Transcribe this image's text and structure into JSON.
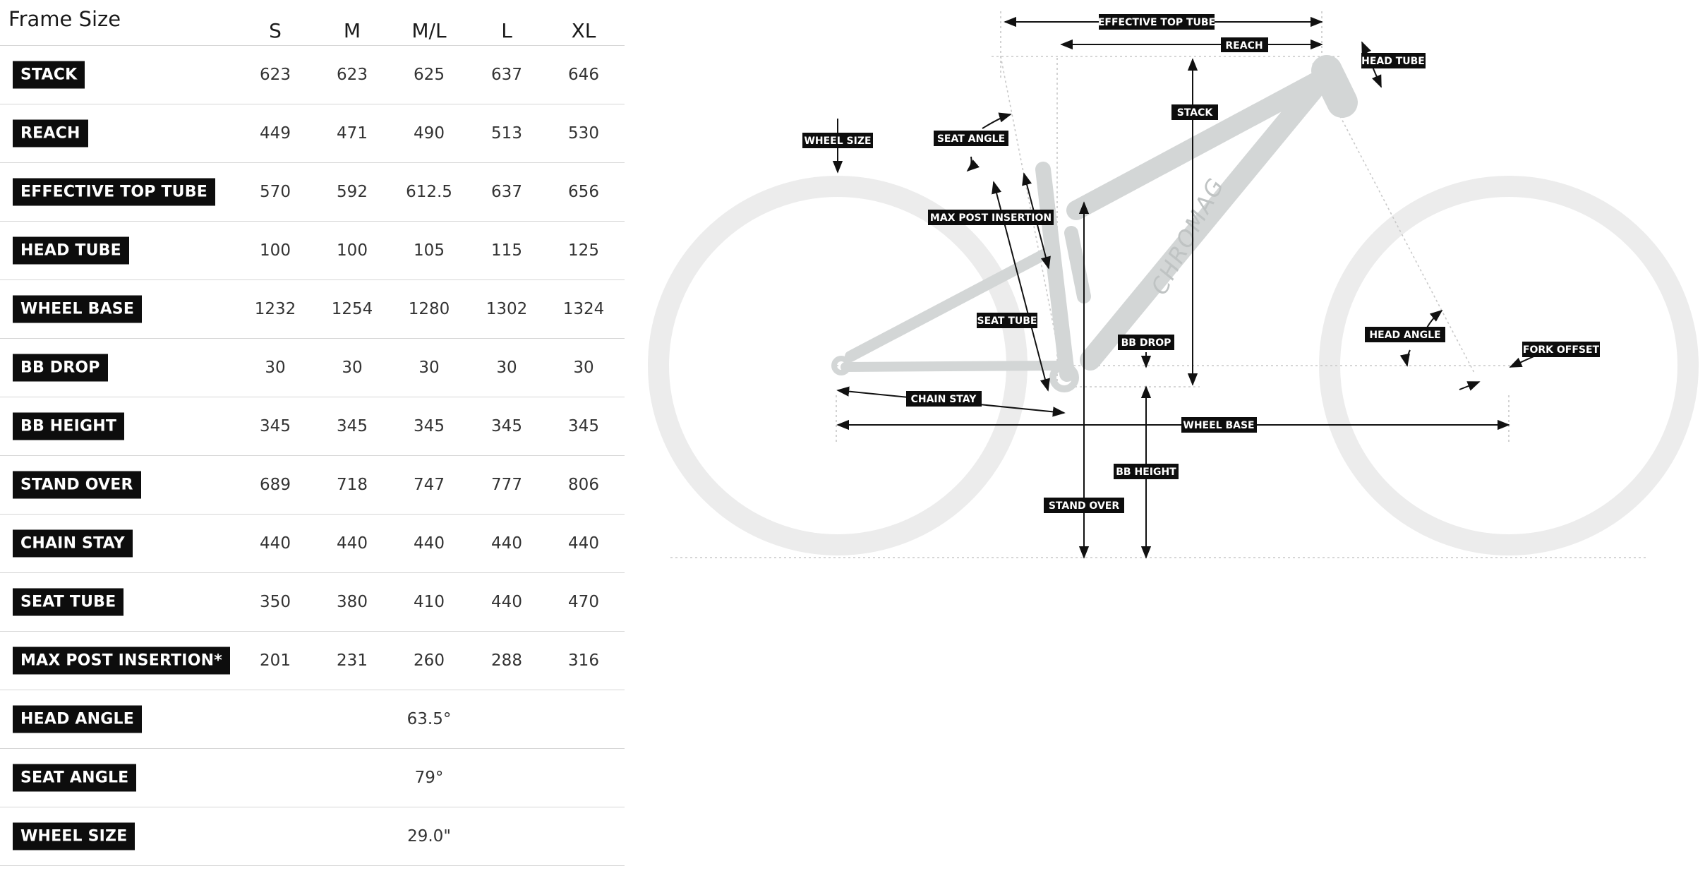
{
  "table": {
    "header": {
      "title": "Frame Size",
      "sizes": [
        "S",
        "M",
        "M/L",
        "L",
        "XL"
      ]
    },
    "rows": [
      {
        "label": "STACK",
        "values": [
          "623",
          "623",
          "625",
          "637",
          "646"
        ]
      },
      {
        "label": "REACH",
        "values": [
          "449",
          "471",
          "490",
          "513",
          "530"
        ]
      },
      {
        "label": "EFFECTIVE TOP TUBE",
        "values": [
          "570",
          "592",
          "612.5",
          "637",
          "656"
        ]
      },
      {
        "label": "HEAD TUBE",
        "values": [
          "100",
          "100",
          "105",
          "115",
          "125"
        ]
      },
      {
        "label": "WHEEL BASE",
        "values": [
          "1232",
          "1254",
          "1280",
          "1302",
          "1324"
        ]
      },
      {
        "label": "BB DROP",
        "values": [
          "30",
          "30",
          "30",
          "30",
          "30"
        ]
      },
      {
        "label": "BB HEIGHT",
        "values": [
          "345",
          "345",
          "345",
          "345",
          "345"
        ]
      },
      {
        "label": "STAND OVER",
        "values": [
          "689",
          "718",
          "747",
          "777",
          "806"
        ]
      },
      {
        "label": "CHAIN STAY",
        "values": [
          "440",
          "440",
          "440",
          "440",
          "440"
        ]
      },
      {
        "label": "SEAT TUBE",
        "values": [
          "350",
          "380",
          "410",
          "440",
          "470"
        ]
      },
      {
        "label": "MAX POST INSERTION*",
        "values": [
          "201",
          "231",
          "260",
          "288",
          "316"
        ]
      },
      {
        "label": "HEAD ANGLE",
        "value": "63.5°"
      },
      {
        "label": "SEAT ANGLE",
        "value": "79°"
      },
      {
        "label": "WHEEL SIZE",
        "value": "29.0\""
      }
    ]
  },
  "diagram": {
    "labels": {
      "effective_top_tube": "EFFECTIVE TOP TUBE",
      "reach": "REACH",
      "head_tube": "HEAD TUBE",
      "stack": "STACK",
      "wheel_size": "WHEEL SIZE",
      "seat_angle": "SEAT ANGLE",
      "max_post_insertion": "MAX POST INSERTION",
      "seat_tube": "SEAT TUBE",
      "bb_drop": "BB DROP",
      "head_angle": "HEAD ANGLE",
      "fork_offset": "FORK OFFSET",
      "chain_stay": "CHAIN STAY",
      "wheel_base": "WHEEL BASE",
      "bb_height": "BB HEIGHT",
      "stand_over": "STAND OVER"
    },
    "brand": "CHROMAG"
  },
  "colors": {
    "label_bg": "#0d0d0d",
    "label_text": "#ffffff",
    "frame": "#d3d6d6",
    "wheel": "#ececec",
    "divider": "#d6d6d6"
  }
}
